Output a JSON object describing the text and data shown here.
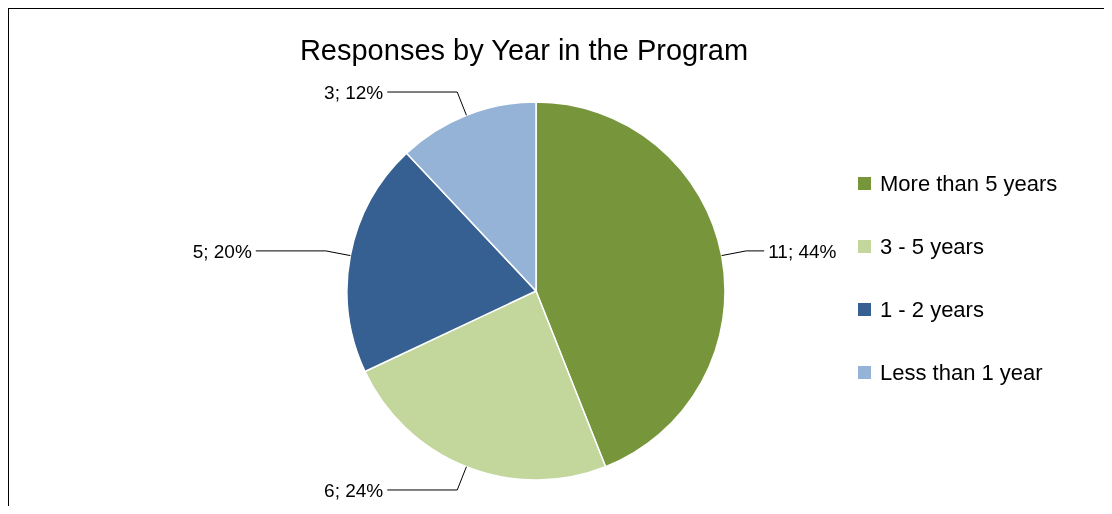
{
  "chart_data": {
    "type": "pie",
    "title": "Responses by Year in the Program",
    "categories": [
      "More than 5 years",
      "3 - 5 years",
      "1 - 2 years",
      "Less than 1 year"
    ],
    "values": [
      11,
      6,
      5,
      3
    ],
    "colors": [
      "#77963c",
      "#c3d69b",
      "#376092",
      "#95b3d7"
    ],
    "value_labels": [
      "11; 44%",
      "6; 24%",
      "5; 20%",
      "3; 12%"
    ],
    "legend": "right"
  }
}
